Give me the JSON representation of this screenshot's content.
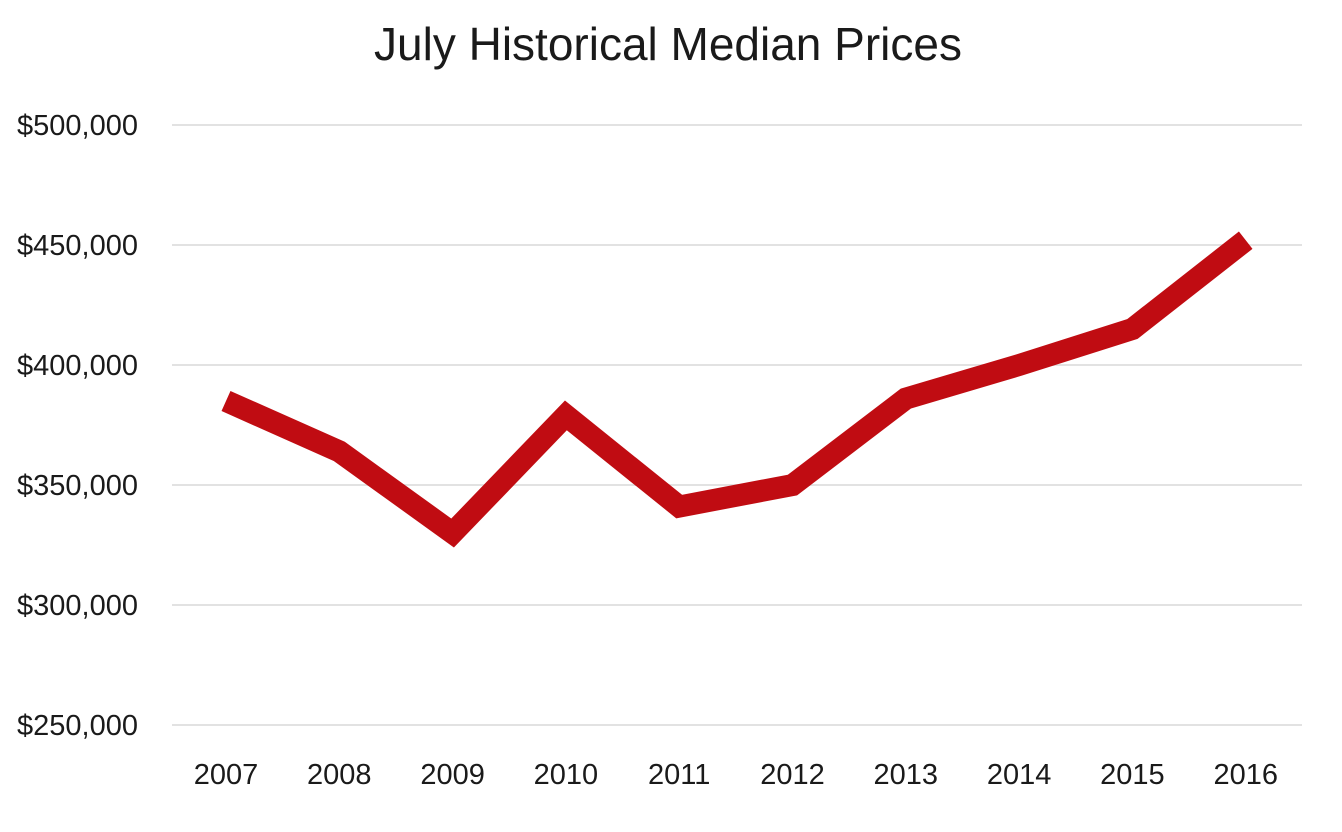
{
  "chart_data": {
    "type": "line",
    "title": "July Historical Median Prices",
    "xlabel": "",
    "ylabel": "",
    "categories": [
      "2007",
      "2008",
      "2009",
      "2010",
      "2011",
      "2012",
      "2013",
      "2014",
      "2015",
      "2016"
    ],
    "series": [
      {
        "values": [
          385000,
          364000,
          330000,
          379000,
          341000,
          350000,
          386000,
          400000,
          415000,
          452000
        ]
      }
    ],
    "ylim": [
      250000,
      500000
    ],
    "yticks": [
      250000,
      300000,
      350000,
      400000,
      450000,
      500000
    ],
    "ytick_labels": [
      "$250,000",
      "$300,000",
      "$350,000",
      "$400,000",
      "$450,000",
      "$500,000"
    ],
    "grid": true,
    "legend": "none",
    "colors": {
      "line": "#c00c12",
      "grid": "#e2e2e2",
      "text": "#1a1a1a"
    }
  }
}
